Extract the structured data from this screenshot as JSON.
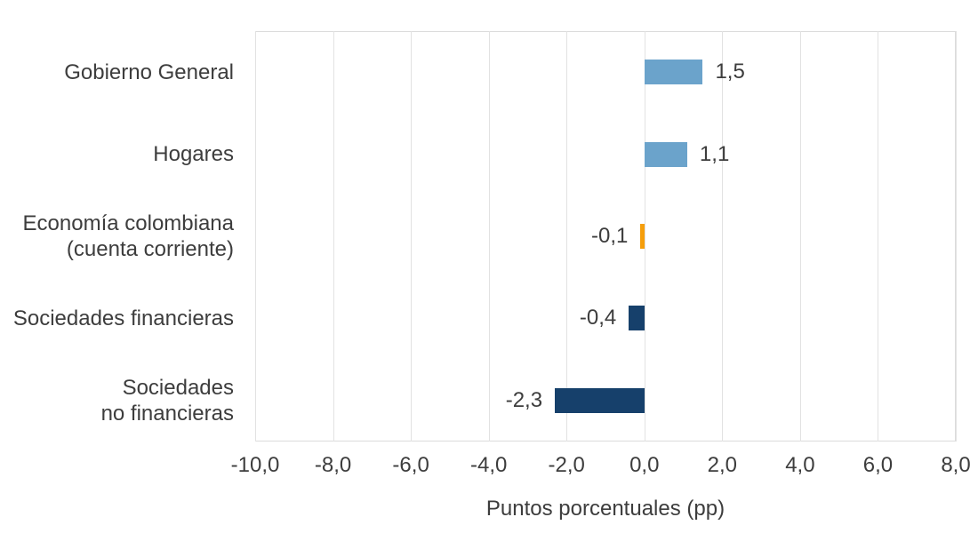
{
  "colors": {
    "positive_bar": "#6BA3CB",
    "negative_bar": "#16406B",
    "highlight_bar": "#F59E0B",
    "gridline": "#E2E2E2",
    "plot_border": "#DCDCDC",
    "text": "#3D3D3D",
    "background": "#FFFFFF"
  },
  "chart_data": {
    "type": "bar",
    "orientation": "horizontal",
    "title": "",
    "xlabel": "Puntos porcentuales (pp)",
    "ylabel": "",
    "categories": [
      "Gobierno General",
      "Hogares",
      "Economía colombiana (cuenta corriente)",
      "Sociedades financieras",
      "Sociedades no financieras"
    ],
    "category_lines": [
      [
        "Gobierno General"
      ],
      [
        "Hogares"
      ],
      [
        "Economía colombiana",
        "(cuenta corriente)"
      ],
      [
        "Sociedades financieras"
      ],
      [
        "Sociedades",
        "no financieras"
      ]
    ],
    "values": [
      1.5,
      1.1,
      -0.1,
      -0.4,
      -2.3
    ],
    "value_labels": [
      "1,5",
      "1,1",
      "-0,1",
      "-0,4",
      "-2,3"
    ],
    "bar_colors": [
      "#6BA3CB",
      "#6BA3CB",
      "#F59E0B",
      "#16406B",
      "#16406B"
    ],
    "xlim": [
      -10,
      8
    ],
    "xticks": [
      -10,
      -8,
      -6,
      -4,
      -2,
      0,
      2,
      4,
      6,
      8
    ],
    "xtick_labels": [
      "-10,0",
      "-8,0",
      "-6,0",
      "-4,0",
      "-2,0",
      "0,0",
      "2,0",
      "4,0",
      "6,0",
      "8,0"
    ],
    "grid": "vertical",
    "legend": "none"
  }
}
